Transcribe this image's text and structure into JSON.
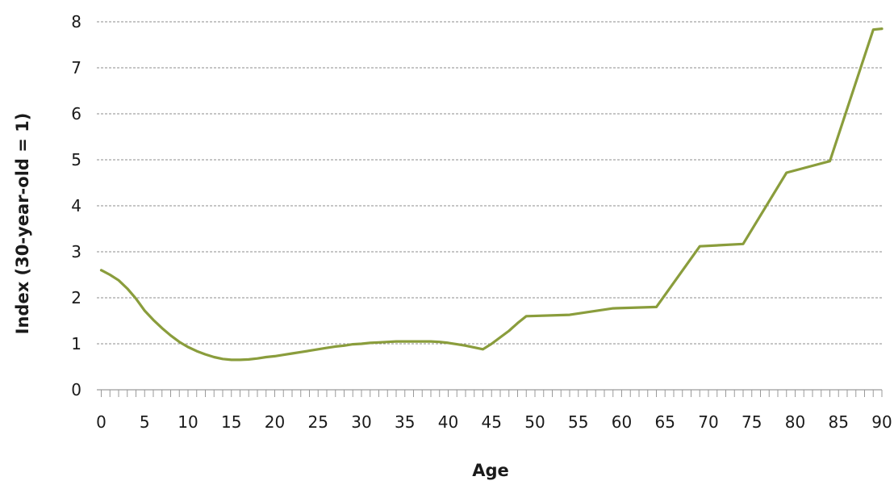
{
  "chart_data": {
    "type": "line",
    "title": "",
    "xlabel": "Age",
    "ylabel": "Index (30-year-old  =  1)",
    "xlim": [
      0,
      90
    ],
    "ylim": [
      0,
      8
    ],
    "x_ticks": [
      0,
      5,
      10,
      15,
      20,
      25,
      30,
      35,
      40,
      45,
      50,
      55,
      60,
      65,
      70,
      75,
      80,
      85,
      90
    ],
    "y_ticks": [
      0,
      1,
      2,
      3,
      4,
      5,
      6,
      7,
      8
    ],
    "grid": "horizontal dashed",
    "legend": "none",
    "line_color": "#8a9d3c",
    "series": [
      {
        "x": [
          0,
          1,
          2,
          3,
          4,
          5,
          6,
          7,
          8,
          9,
          10,
          11,
          12,
          13,
          14,
          15,
          16,
          17,
          18,
          19,
          20,
          21,
          22,
          23,
          24,
          25,
          26,
          27,
          28,
          29,
          30,
          31,
          32,
          33,
          34,
          35,
          36,
          37,
          38,
          39,
          40,
          41,
          42,
          43,
          44,
          45,
          46,
          47,
          48,
          49,
          54,
          59,
          64,
          69,
          74,
          79,
          84,
          89,
          90
        ],
        "values": [
          2.6,
          2.5,
          2.38,
          2.2,
          1.98,
          1.72,
          1.52,
          1.34,
          1.18,
          1.04,
          0.93,
          0.84,
          0.77,
          0.71,
          0.67,
          0.65,
          0.65,
          0.66,
          0.68,
          0.71,
          0.73,
          0.76,
          0.79,
          0.82,
          0.85,
          0.88,
          0.91,
          0.94,
          0.96,
          0.99,
          1.0,
          1.02,
          1.03,
          1.04,
          1.05,
          1.05,
          1.05,
          1.05,
          1.05,
          1.04,
          1.02,
          0.99,
          0.96,
          0.92,
          0.88,
          1.0,
          1.14,
          1.28,
          1.45,
          1.6,
          1.63,
          1.77,
          1.8,
          3.12,
          3.17,
          4.72,
          4.97,
          7.83,
          7.85
        ]
      }
    ]
  }
}
